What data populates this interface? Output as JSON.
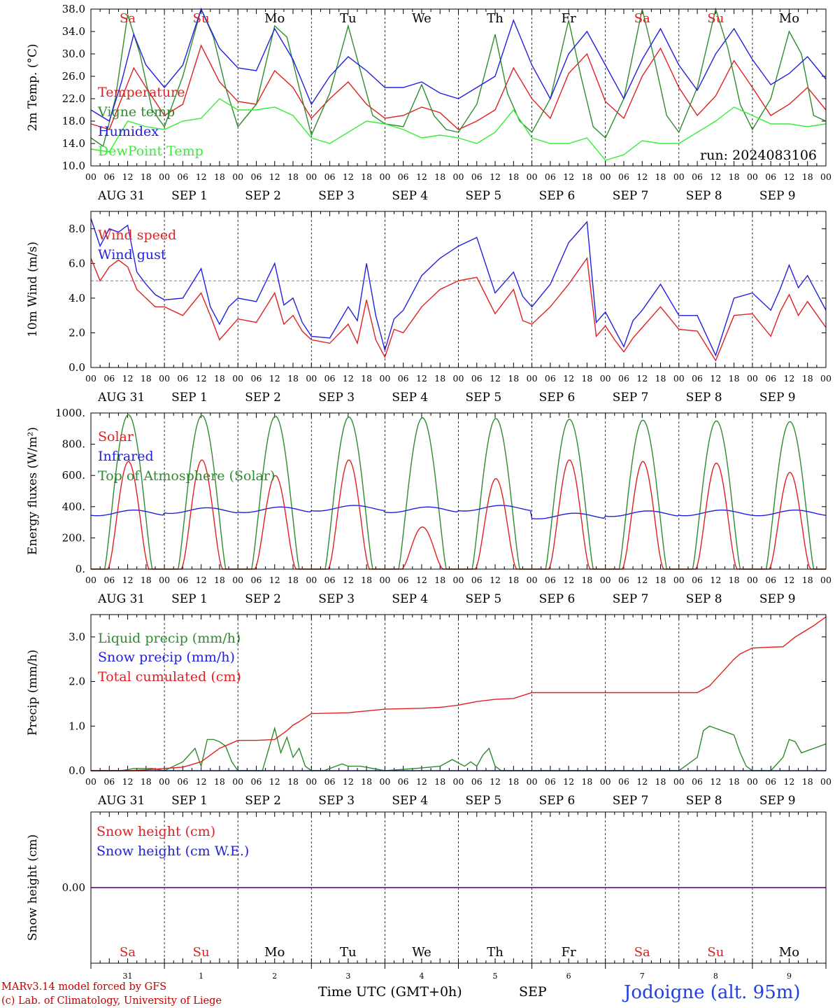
{
  "run_label": "run: 2024083106",
  "footer": {
    "model_line": "MARv3.14 model forced by GFS",
    "copyright_line": "(c) Lab. of Climatology, University of Liege",
    "x_axis_title": "Time UTC (GMT+0h)",
    "month_label": "SEP",
    "station": "Jodoigne (alt. 95m)"
  },
  "hour_ticks": [
    "00",
    "06",
    "12",
    "18"
  ],
  "date_labels": [
    "AUG 31",
    "SEP  1",
    "SEP  2",
    "SEP  3",
    "SEP  4",
    "SEP  5",
    "SEP  6",
    "SEP  7",
    "SEP  8",
    "SEP  9"
  ],
  "day_names": [
    {
      "name": "Sa",
      "color": "#e02020"
    },
    {
      "name": "Su",
      "color": "#e02020"
    },
    {
      "name": "Mo",
      "color": "#000000"
    },
    {
      "name": "Tu",
      "color": "#000000"
    },
    {
      "name": "We",
      "color": "#000000"
    },
    {
      "name": "Th",
      "color": "#000000"
    },
    {
      "name": "Fr",
      "color": "#000000"
    },
    {
      "name": "Sa",
      "color": "#e02020"
    },
    {
      "name": "Su",
      "color": "#e02020"
    },
    {
      "name": "Mo",
      "color": "#000000"
    }
  ],
  "day_numbers": [
    "31",
    "1",
    "2",
    "3",
    "4",
    "5",
    "6",
    "7",
    "8",
    "9"
  ],
  "chart_data": [
    {
      "id": "temp",
      "type": "line",
      "ylabel": "2m Temp. (°C)",
      "ylim": [
        10,
        38
      ],
      "yticks": [
        "10.0",
        "14.0",
        "18.0",
        "22.0",
        "26.0",
        "30.0",
        "34.0",
        "38.0"
      ],
      "x_unit": "hours since 2024-08-31 00 UTC",
      "series": [
        {
          "name": "Temperature",
          "color": "#e02020",
          "x": [
            0,
            6,
            10,
            14,
            18,
            24,
            30,
            36,
            42,
            48,
            54,
            60,
            66,
            72,
            78,
            84,
            90,
            96,
            102,
            108,
            114,
            120,
            126,
            132,
            138,
            144,
            150,
            156,
            162,
            168,
            174,
            180,
            186,
            192,
            198,
            204,
            210,
            216,
            222,
            228,
            234,
            240
          ],
          "y": [
            17.5,
            16.5,
            22,
            27.5,
            24,
            19,
            21,
            31.5,
            25,
            21.5,
            21,
            27,
            24,
            18.5,
            22,
            25,
            21,
            18.5,
            19,
            20.5,
            19.5,
            16.5,
            18,
            20,
            27.5,
            22,
            18.5,
            26.5,
            30,
            21.5,
            18.5,
            26,
            31,
            24,
            19,
            22.5,
            28.8,
            24,
            19,
            21,
            24,
            20
          ]
        },
        {
          "name": "Vigne temp",
          "color": "#2e8b2e",
          "x": [
            0,
            4,
            8,
            12,
            16,
            20,
            24,
            30,
            36,
            40,
            44,
            48,
            54,
            60,
            64,
            68,
            72,
            78,
            84,
            88,
            92,
            96,
            102,
            108,
            112,
            116,
            120,
            126,
            132,
            136,
            140,
            144,
            150,
            156,
            160,
            164,
            168,
            174,
            180,
            184,
            188,
            192,
            198,
            204,
            208,
            212,
            216,
            222,
            228,
            232,
            236,
            240
          ],
          "y": [
            15,
            13.5,
            22,
            37,
            30,
            20,
            17,
            26,
            38,
            33,
            24,
            17,
            21,
            35,
            33,
            24,
            15.5,
            23,
            35,
            27,
            19,
            17.5,
            17,
            24.5,
            19,
            16.5,
            16,
            21,
            33.5,
            23,
            18,
            16,
            22,
            36,
            26,
            17,
            15,
            22,
            38,
            29,
            19,
            16,
            24,
            38,
            31,
            21,
            16.5,
            22,
            34,
            30,
            19,
            18
          ]
        },
        {
          "name": "Humidex",
          "color": "#2020e0",
          "x": [
            0,
            6,
            10,
            14,
            18,
            24,
            30,
            36,
            42,
            48,
            54,
            60,
            66,
            72,
            78,
            84,
            90,
            96,
            102,
            108,
            114,
            120,
            126,
            132,
            138,
            144,
            150,
            156,
            162,
            168,
            174,
            180,
            186,
            192,
            198,
            204,
            210,
            216,
            222,
            228,
            234,
            240
          ],
          "y": [
            20,
            18,
            25,
            33.5,
            28,
            24,
            28,
            38,
            31,
            27.5,
            27,
            34.5,
            29,
            21,
            26,
            29.5,
            27,
            24,
            24,
            25,
            23,
            22,
            24,
            26,
            36,
            28,
            22,
            30,
            34,
            28,
            22,
            29,
            34.5,
            28,
            23.5,
            30,
            34.5,
            29,
            24.5,
            26.5,
            29.5,
            25.5
          ]
        },
        {
          "name": "DewPoint Temp",
          "color": "#33ee33",
          "x": [
            0,
            6,
            12,
            18,
            24,
            30,
            36,
            42,
            48,
            54,
            60,
            66,
            72,
            78,
            84,
            90,
            96,
            102,
            108,
            114,
            120,
            126,
            132,
            138,
            144,
            150,
            156,
            162,
            168,
            174,
            180,
            186,
            192,
            198,
            204,
            210,
            216,
            222,
            228,
            234,
            240
          ],
          "y": [
            13,
            12.5,
            18,
            17,
            16.5,
            18,
            18.5,
            22,
            20,
            20,
            20.5,
            19,
            15,
            14,
            16,
            18,
            17.5,
            16.5,
            15,
            15.5,
            15,
            14,
            16,
            20,
            15,
            14,
            14,
            15,
            11,
            12,
            14.5,
            14,
            14,
            16,
            18,
            20.5,
            19,
            17.5,
            17.5,
            17,
            17.5
          ]
        }
      ]
    },
    {
      "id": "wind",
      "type": "line",
      "ylabel": "10m Wind (m/s)",
      "ylim": [
        0,
        9
      ],
      "yticks": [
        "0.0",
        "2.0",
        "4.0",
        "6.0",
        "8.0"
      ],
      "reference_line": 5,
      "x_unit": "hours since 2024-08-31 00 UTC",
      "series": [
        {
          "name": "Wind speed",
          "color": "#e02020",
          "x": [
            0,
            3,
            6,
            9,
            12,
            15,
            18,
            21,
            24,
            30,
            36,
            39,
            42,
            45,
            48,
            54,
            60,
            63,
            66,
            69,
            72,
            78,
            84,
            87,
            90,
            93,
            96,
            99,
            102,
            108,
            114,
            120,
            126,
            132,
            138,
            141,
            144,
            150,
            156,
            162,
            165,
            168,
            171,
            174,
            177,
            180,
            186,
            192,
            198,
            204,
            210,
            216,
            222,
            225,
            228,
            231,
            234,
            240
          ],
          "y": [
            6.3,
            5,
            5.8,
            6.2,
            5.8,
            4.5,
            4,
            3.5,
            3.5,
            3,
            4.3,
            3,
            1.6,
            2.2,
            2.8,
            2.6,
            4.3,
            2.5,
            3,
            2.1,
            1.6,
            1.4,
            2.5,
            1.4,
            3.9,
            1.6,
            0.6,
            2.2,
            2,
            3.5,
            4.5,
            5,
            5.2,
            3.1,
            4.5,
            2.7,
            2.5,
            3.5,
            4.8,
            6.3,
            1.8,
            2.4,
            1.6,
            0.9,
            1.7,
            2.3,
            3.5,
            2.2,
            2.1,
            0.4,
            3,
            3.1,
            1.8,
            3.2,
            4.2,
            3,
            3.8,
            2.3
          ]
        },
        {
          "name": "Wind gust",
          "color": "#2020e0",
          "x": [
            0,
            3,
            6,
            9,
            12,
            15,
            18,
            21,
            24,
            30,
            36,
            39,
            42,
            45,
            48,
            54,
            60,
            63,
            66,
            69,
            72,
            78,
            84,
            87,
            90,
            93,
            96,
            99,
            102,
            108,
            114,
            120,
            126,
            132,
            138,
            141,
            144,
            150,
            156,
            162,
            165,
            168,
            171,
            174,
            177,
            180,
            186,
            192,
            198,
            204,
            210,
            216,
            222,
            225,
            228,
            231,
            234,
            240
          ],
          "y": [
            8.6,
            7,
            8,
            7.8,
            8.2,
            5.5,
            4.8,
            4.2,
            3.9,
            4,
            5.7,
            3.5,
            2.5,
            3.5,
            4,
            3.8,
            6,
            3.6,
            4,
            2.6,
            1.8,
            1.7,
            3.5,
            2.7,
            6,
            3,
            1,
            2.8,
            3.3,
            5.3,
            6.3,
            7,
            7.5,
            4.3,
            5.5,
            4.1,
            3.5,
            4.8,
            7.2,
            8.4,
            2.6,
            3.2,
            2.2,
            1.2,
            2.7,
            3.3,
            4.8,
            3,
            3,
            0.7,
            4,
            4.3,
            3.3,
            4.5,
            5.9,
            4.6,
            5.3,
            3.3
          ]
        }
      ]
    },
    {
      "id": "energy",
      "type": "line",
      "ylabel": "Energy fluxes (W/m²)",
      "ylim": [
        0,
        1000
      ],
      "yticks": [
        "0.",
        "200.",
        "400.",
        "600.",
        "800.",
        "1000."
      ],
      "x_unit": "hours since 2024-08-31 00 UTC",
      "toa_peak": [
        990,
        985,
        980,
        975,
        970,
        965,
        960,
        955,
        950,
        945
      ],
      "solar_peak": [
        690,
        700,
        600,
        700,
        270,
        580,
        700,
        690,
        680,
        620
      ],
      "infrared_day_mean": [
        360,
        375,
        380,
        390,
        380,
        390,
        340,
        355,
        360,
        360
      ],
      "series": [
        {
          "name": "Solar",
          "color": "#e02020"
        },
        {
          "name": "Infrared",
          "color": "#2020e0"
        },
        {
          "name": "Top of Atmosphere (Solar)",
          "color": "#2e8b2e"
        }
      ]
    },
    {
      "id": "precip",
      "type": "line",
      "ylabel": "Precip (mm/h)",
      "ylim": [
        0,
        3.5
      ],
      "yticks": [
        "0.0",
        "1.0",
        "2.0",
        "3.0"
      ],
      "x_unit": "hours since 2024-08-31 00 UTC",
      "series": [
        {
          "name": "Liquid precip (mm/h)",
          "color": "#2e8b2e",
          "x": [
            0,
            10,
            14,
            20,
            24,
            30,
            34,
            36,
            38,
            40,
            42,
            44,
            46,
            48,
            56,
            60,
            62,
            64,
            66,
            68,
            70,
            72,
            76,
            82,
            84,
            88,
            96,
            106,
            114,
            118,
            122,
            124,
            126,
            128,
            130,
            132,
            134,
            136,
            140,
            144,
            168,
            186,
            192,
            198,
            200,
            202,
            204,
            206,
            208,
            210,
            212,
            214,
            216,
            222,
            226,
            228,
            230,
            232,
            234,
            236,
            240
          ],
          "y": [
            0,
            0,
            0.05,
            0.05,
            0,
            0.2,
            0.5,
            0.1,
            0.7,
            0.7,
            0.65,
            0.55,
            0.2,
            0,
            0,
            0.95,
            0.4,
            0.75,
            0.3,
            0.5,
            0.1,
            0,
            0,
            0.15,
            0.1,
            0.1,
            0,
            0.05,
            0.1,
            0.25,
            0.1,
            0.2,
            0.1,
            0.35,
            0.5,
            0.1,
            0,
            0,
            0,
            0,
            0,
            0,
            0,
            0.3,
            0.9,
            1,
            0.95,
            0.9,
            0.85,
            0.8,
            0.4,
            0.1,
            0,
            0,
            0.3,
            0.7,
            0.65,
            0.4,
            0.45,
            0.5,
            0.6
          ]
        },
        {
          "name": "Snow precip (mm/h)",
          "color": "#2020e0",
          "x": [
            0,
            240
          ],
          "y": [
            0,
            0
          ]
        },
        {
          "name": "Total cumulated (cm)",
          "color": "#e02020",
          "x": [
            0,
            12,
            18,
            24,
            30,
            36,
            42,
            48,
            54,
            60,
            64,
            66,
            68,
            72,
            84,
            96,
            108,
            114,
            120,
            126,
            132,
            138,
            144,
            156,
            168,
            180,
            192,
            198,
            202,
            206,
            210,
            212,
            216,
            222,
            226,
            230,
            236,
            240
          ],
          "y": [
            0,
            0,
            0.02,
            0.05,
            0.08,
            0.2,
            0.5,
            0.68,
            0.68,
            0.7,
            0.9,
            1.02,
            1.1,
            1.28,
            1.3,
            1.38,
            1.4,
            1.42,
            1.47,
            1.55,
            1.6,
            1.62,
            1.75,
            1.75,
            1.75,
            1.75,
            1.75,
            1.75,
            1.9,
            2.2,
            2.5,
            2.62,
            2.75,
            2.77,
            2.78,
            3,
            3.25,
            3.45
          ]
        }
      ]
    },
    {
      "id": "snow",
      "type": "line",
      "ylabel": "Snow height (cm)",
      "yticks": [
        "0.00"
      ],
      "x_unit": "hours since 2024-08-31 00 UTC",
      "series": [
        {
          "name": "Snow height (cm)",
          "color": "#e02020",
          "x": [
            0,
            240
          ],
          "y": [
            0,
            0
          ]
        },
        {
          "name": "Snow height (cm W.E.)",
          "color": "#2020e0",
          "x": [
            0,
            240
          ],
          "y": [
            0,
            0
          ]
        }
      ]
    }
  ]
}
